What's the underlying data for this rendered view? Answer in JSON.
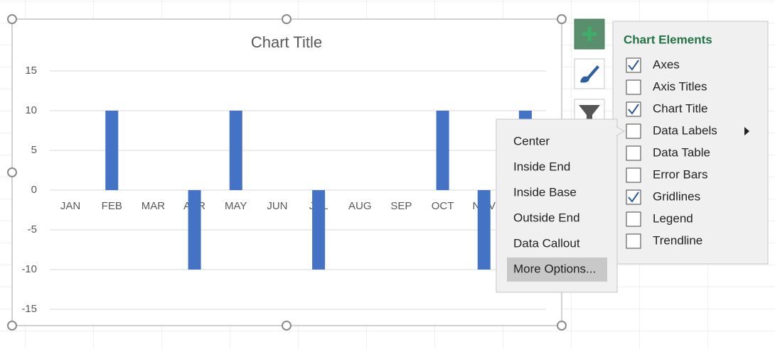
{
  "chart_data": {
    "type": "bar",
    "title": "Chart Title",
    "categories": [
      "JAN",
      "FEB",
      "MAR",
      "APR",
      "MAY",
      "JUN",
      "JUL",
      "AUG",
      "SEP",
      "OCT",
      "NOV",
      null
    ],
    "values": [
      0,
      10,
      0,
      -10,
      10,
      0,
      -10,
      0,
      0,
      10,
      -10,
      10
    ],
    "color": "#4472c4",
    "ylim": [
      -15,
      15
    ],
    "yticks": [
      -15,
      -10,
      -5,
      0,
      5,
      10,
      15
    ],
    "grid": true
  },
  "chart_elements": {
    "title": "Chart Elements",
    "items": [
      {
        "label": "Axes",
        "checked": true
      },
      {
        "label": "Axis Titles",
        "checked": false
      },
      {
        "label": "Chart Title",
        "checked": true
      },
      {
        "label": "Data Labels",
        "checked": false,
        "has_submenu": true
      },
      {
        "label": "Data Table",
        "checked": false
      },
      {
        "label": "Error Bars",
        "checked": false
      },
      {
        "label": "Gridlines",
        "checked": true
      },
      {
        "label": "Legend",
        "checked": false
      },
      {
        "label": "Trendline",
        "checked": false
      }
    ]
  },
  "data_labels_menu": {
    "items": [
      "Center",
      "Inside End",
      "Inside Base",
      "Outside End",
      "Data Callout",
      "More Options..."
    ],
    "highlighted_item": 5
  }
}
